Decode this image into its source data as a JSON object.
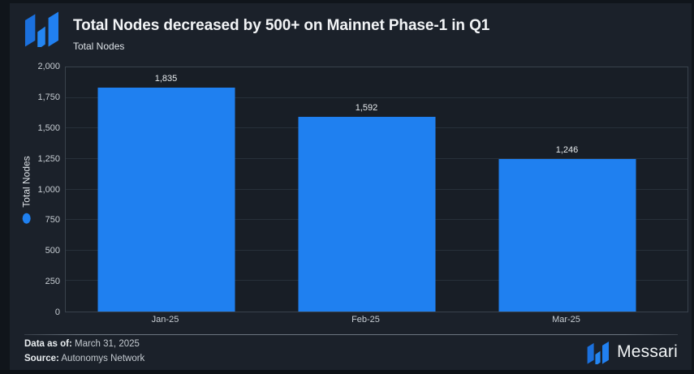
{
  "header": {
    "title": "Total Nodes decreased by 500+ on Mainnet Phase-1 in Q1",
    "subtitle": "Total Nodes"
  },
  "chart_data": {
    "type": "bar",
    "title": "Total Nodes decreased by 500+ on Mainnet Phase-1 in Q1",
    "subtitle": "Total Nodes",
    "categories": [
      "Jan-25",
      "Feb-25",
      "Mar-25"
    ],
    "values": [
      1835,
      1592,
      1246
    ],
    "value_labels": [
      "1,835",
      "1,592",
      "1,246"
    ],
    "ylabel": "Total Nodes",
    "xlabel": "",
    "ylim": [
      0,
      2000
    ],
    "yticks": [
      0,
      250,
      500,
      750,
      1000,
      1250,
      1500,
      1750,
      2000
    ],
    "ytick_labels": [
      "0",
      "250",
      "500",
      "750",
      "1,000",
      "1,250",
      "1,500",
      "1,750",
      "2,000"
    ],
    "grid": "horizontal",
    "legend": {
      "label": "Total Nodes",
      "marker": "dot",
      "position": "left-rotated"
    },
    "bar_color": "#1f80f0"
  },
  "footer": {
    "data_as_of_label": "Data as of:",
    "data_as_of_value": "March 31, 2025",
    "source_label": "Source:",
    "source_value": "Autonomys Network",
    "brand_name": "Messari"
  },
  "colors": {
    "accent_blue": "#1f80f0",
    "background": "#1b212a",
    "plot_background": "#181e26",
    "gridline": "#27303a",
    "text_primary": "#f2f4f6",
    "text_secondary": "#c7cdd3"
  }
}
